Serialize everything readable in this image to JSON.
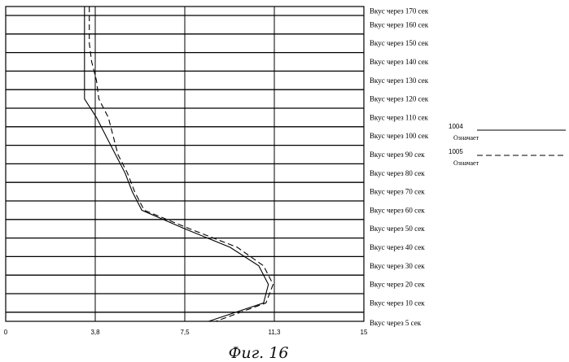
{
  "figure_caption": "Фиг. 16",
  "chart_data": {
    "type": "line",
    "orientation": "horizontal",
    "xlim": [
      0,
      15
    ],
    "x_ticks": [
      "0",
      "3,8",
      "7,5",
      "11,3",
      "15"
    ],
    "x_tick_values": [
      0,
      3.75,
      7.5,
      11.25,
      15
    ],
    "categories": [
      "Вкус через 170 сек",
      "Вкус через 160 сек",
      "Вкус через 150 сек",
      "Вкус через 140 сек",
      "Вкус через 130 сек",
      "Вкус через 120 сек",
      "Вкус через 110 сек",
      "Вкус через 100 сек",
      "Вкус через 90 сек",
      "Вкус через 80 сек",
      "Вкус через 70 сек",
      "Вкус через 60 сек",
      "Вкус через 50 сек",
      "Вкус через 40 сек",
      "Вкус через 30 сек",
      "Вкус через 20 сек",
      "Вкус через 10 сек",
      "Вкус через 5 сек"
    ],
    "grid": true,
    "legend_position": "right",
    "series": [
      {
        "id": "1004",
        "name": "Означает",
        "style": "solid",
        "color": "#000000",
        "values": [
          3.3,
          3.3,
          3.3,
          3.3,
          3.3,
          3.3,
          3.8,
          4.2,
          4.6,
          5.0,
          5.3,
          5.7,
          7.5,
          9.4,
          10.6,
          11.0,
          10.8,
          8.5
        ]
      },
      {
        "id": "1005",
        "name": "Означает",
        "style": "dashed",
        "color": "#000000",
        "values": [
          3.5,
          3.5,
          3.5,
          3.6,
          3.8,
          3.9,
          4.3,
          4.5,
          4.7,
          5.1,
          5.4,
          5.8,
          7.7,
          9.7,
          10.8,
          11.2,
          10.9,
          8.8
        ]
      }
    ]
  }
}
